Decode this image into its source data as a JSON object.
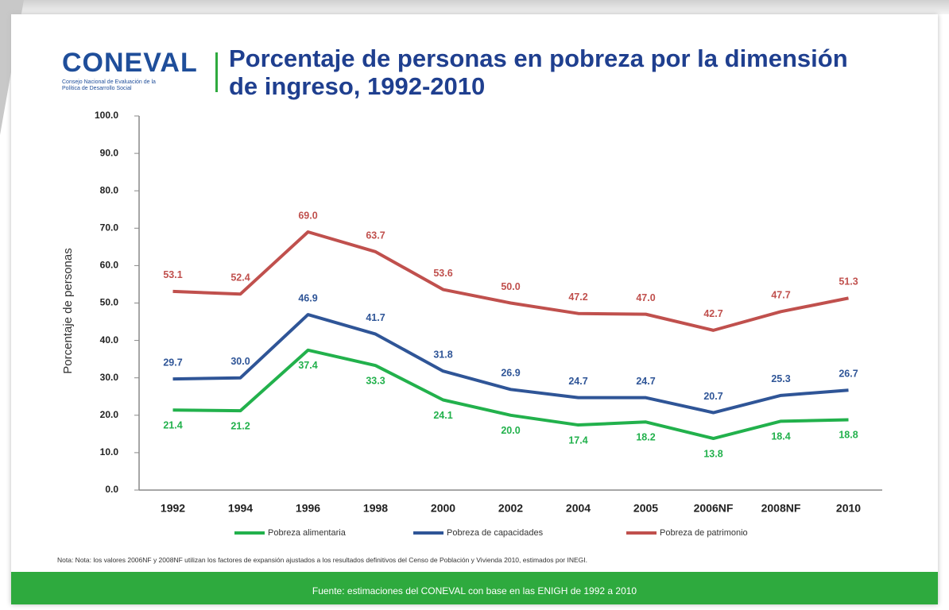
{
  "logo": {
    "name": "CONEVAL",
    "subtitle": "Consejo Nacional de Evaluación de la Política de Desarrollo Social"
  },
  "note": "Nota: Nota: los valores 2006NF y 2008NF utilizan los factores de expansión ajustados a los resultados definitivos del Censo de Población y Vivienda 2010, estimados por INEGI.",
  "source": "Fuente: estimaciones del CONEVAL con base en las ENIGH de 1992 a  2010",
  "chart_data": {
    "type": "line",
    "title": "Porcentaje de personas en pobreza por la dimensión de ingreso, 1992-2010",
    "y_label": "Porcentaje de personas",
    "categories": [
      "1992",
      "1994",
      "1996",
      "1998",
      "2000",
      "2002",
      "2004",
      "2005",
      "2006NF",
      "2008NF",
      "2010"
    ],
    "ylim": [
      0,
      100
    ],
    "yticks": [
      {
        "value": 0,
        "label": "0.0"
      },
      {
        "value": 10,
        "label": "10.0"
      },
      {
        "value": 20,
        "label": "20.0"
      },
      {
        "value": 30,
        "label": "30.0"
      },
      {
        "value": 40,
        "label": "40.0"
      },
      {
        "value": 50,
        "label": "50.0"
      },
      {
        "value": 60,
        "label": "60.0"
      },
      {
        "value": 70,
        "label": "70.0"
      },
      {
        "value": 80,
        "label": "80.0"
      },
      {
        "value": 90,
        "label": "90.0"
      },
      {
        "value": 100,
        "label": "100.0"
      }
    ],
    "legend": "bottom",
    "series": [
      {
        "name": "Pobreza alimentaria",
        "color": "#22b14c",
        "label_position": "below",
        "values": [
          21.4,
          21.2,
          37.4,
          33.3,
          24.1,
          20.0,
          17.4,
          18.2,
          13.8,
          18.4,
          18.8
        ],
        "value_labels": [
          "21.4",
          "21.2",
          "37.4",
          "33.3",
          "24.1",
          "20.0",
          "17.4",
          "18.2",
          "13.8",
          "18.4",
          "18.8"
        ]
      },
      {
        "name": "Pobreza de capacidades",
        "color": "#2f5597",
        "label_position": "above",
        "values": [
          29.7,
          30.0,
          46.9,
          41.7,
          31.8,
          26.9,
          24.7,
          24.7,
          20.7,
          25.3,
          26.7
        ],
        "value_labels": [
          "29.7",
          "30.0",
          "46.9",
          "41.7",
          "31.8",
          "26.9",
          "24.7",
          "24.7",
          "20.7",
          "25.3",
          "26.7"
        ]
      },
      {
        "name": "Pobreza de patrimonio",
        "color": "#c0504d",
        "label_position": "above",
        "values": [
          53.1,
          52.4,
          69.0,
          63.7,
          53.6,
          50.0,
          47.2,
          47.0,
          42.7,
          47.7,
          51.3
        ],
        "value_labels": [
          "53.1",
          "52.4",
          "69.0",
          "63.7",
          "53.6",
          "50.0",
          "47.2",
          "47.0",
          "42.7",
          "47.7",
          "51.3"
        ]
      }
    ]
  }
}
